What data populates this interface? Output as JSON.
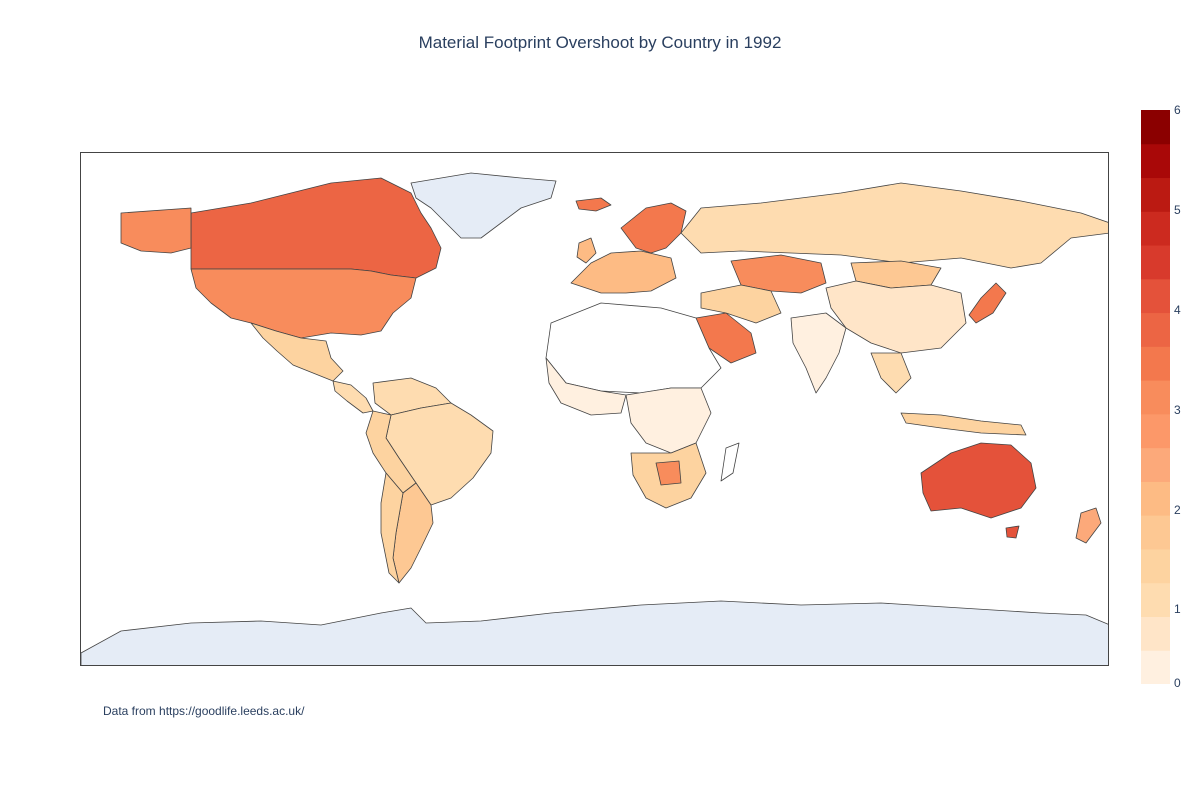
{
  "title": "Material Footprint Overshoot by Country in 1992",
  "footnote": "Data from https://goodlife.leeds.ac.uk/",
  "colorbar": {
    "ticks": [
      "0",
      "1",
      "2",
      "3",
      "4",
      "5",
      "6"
    ],
    "range": [
      0,
      6
    ],
    "colorscale": [
      "#fff0e0",
      "#ffe5c8",
      "#fedcb0",
      "#fdd3a0",
      "#fdc893",
      "#fdbb84",
      "#fca97a",
      "#fc9869",
      "#f88c5c",
      "#f3784d",
      "#ec6544",
      "#e4523a",
      "#d83a2c",
      "#cc2a1f",
      "#bb1a12",
      "#a90808",
      "#8b0000"
    ]
  },
  "chart_data": {
    "type": "choropleth",
    "title": "Material Footprint Overshoot by Country in 1992",
    "projection": "equirectangular",
    "colorbar_range": [
      0,
      6
    ],
    "no_data_color": "#e5ecf6",
    "regions": [
      {
        "name": "Canada",
        "value": 3.8
      },
      {
        "name": "United States",
        "value": 3.1
      },
      {
        "name": "Mexico",
        "value": 1.4
      },
      {
        "name": "Greenland",
        "value": null
      },
      {
        "name": "Brazil",
        "value": 1.2
      },
      {
        "name": "Argentina",
        "value": 1.5
      },
      {
        "name": "Chile",
        "value": 1.3
      },
      {
        "name": "Norway",
        "value": 2.9
      },
      {
        "name": "Sweden",
        "value": 3.0
      },
      {
        "name": "Finland",
        "value": 3.5
      },
      {
        "name": "Iceland",
        "value": 3.4
      },
      {
        "name": "Russia",
        "value": 1.0
      },
      {
        "name": "Kazakhstan",
        "value": 2.9
      },
      {
        "name": "Mongolia",
        "value": 1.6
      },
      {
        "name": "China",
        "value": 0.6
      },
      {
        "name": "India",
        "value": 0.3
      },
      {
        "name": "Saudi Arabia",
        "value": 3.0
      },
      {
        "name": "Japan",
        "value": 3.1
      },
      {
        "name": "Australia",
        "value": 4.2
      },
      {
        "name": "New Zealand",
        "value": 2.4
      },
      {
        "name": "Botswana",
        "value": 3.0
      },
      {
        "name": "South Africa",
        "value": 1.8
      },
      {
        "name": "Antarctica",
        "value": null
      }
    ]
  }
}
